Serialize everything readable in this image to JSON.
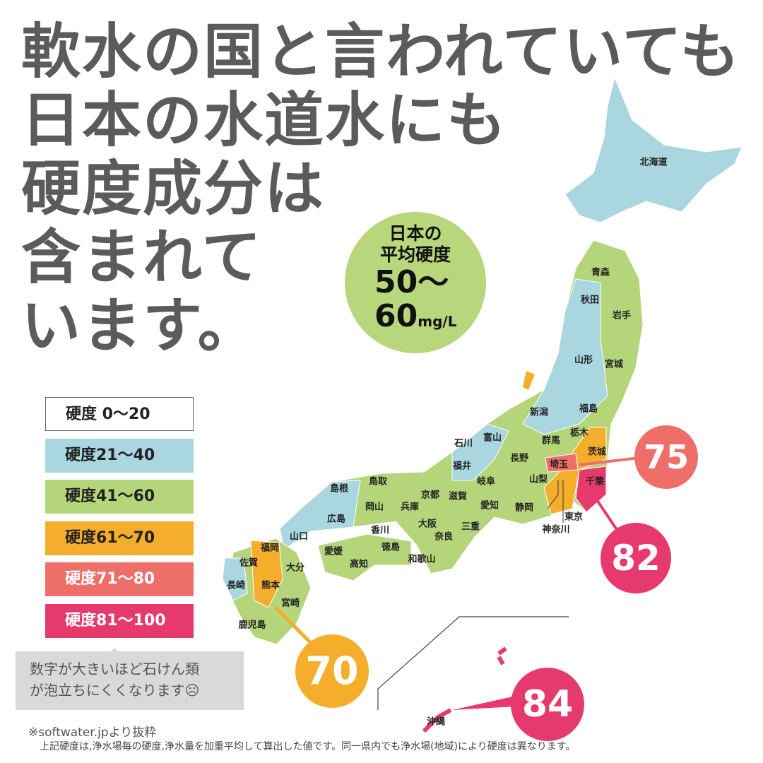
{
  "title_lines": [
    "軟水の国と言われていても",
    "日本の水道水にも",
    "硬度成分は",
    "含まれて",
    "います。"
  ],
  "average": {
    "line1": "日本の",
    "line2": "平均硬度",
    "value1": "50〜",
    "value2": "60",
    "unit": "mg/L"
  },
  "legend": [
    {
      "label": "硬度  0〜20",
      "color": "#ffffff",
      "text_color": "#222"
    },
    {
      "label": "硬度21〜40",
      "color": "#a9d6df",
      "text_color": "#222"
    },
    {
      "label": "硬度41〜60",
      "color": "#b5d57a",
      "text_color": "#222"
    },
    {
      "label": "硬度61〜70",
      "color": "#f4ae2c",
      "text_color": "#222"
    },
    {
      "label": "硬度71〜80",
      "color": "#ee6f6a",
      "text_color": "#fff"
    },
    {
      "label": "硬度81〜100",
      "color": "#e63a6e",
      "text_color": "#fff"
    }
  ],
  "note": {
    "line1": "数字が大きいほど石けん類",
    "line2": "が泡立ちにくくなります☹"
  },
  "callouts": [
    {
      "value": "75",
      "color": "#ee6f6a",
      "prefecture": "埼玉"
    },
    {
      "value": "82",
      "color": "#e63a6e",
      "prefecture": "千葉"
    },
    {
      "value": "70",
      "color": "#f4ae2c",
      "prefecture": "熊本"
    },
    {
      "value": "84",
      "color": "#e63a6e",
      "prefecture": "沖縄"
    }
  ],
  "prefectures": [
    "北海道",
    "青森",
    "秋田",
    "岩手",
    "山形",
    "宮城",
    "新潟",
    "福島",
    "石川",
    "富山",
    "群馬",
    "栃木",
    "茨城",
    "長野",
    "埼玉",
    "千葉",
    "福井",
    "山梨",
    "岐阜",
    "鳥取",
    "島根",
    "京都",
    "滋賀",
    "岡山",
    "兵庫",
    "愛知",
    "静岡",
    "東京",
    "神奈川",
    "広島",
    "大阪",
    "三重",
    "香川",
    "奈良",
    "山口",
    "愛媛",
    "徳島",
    "福岡",
    "高知",
    "和歌山",
    "佐賀",
    "大分",
    "長崎",
    "熊本",
    "宮崎",
    "鹿児島",
    "沖縄"
  ],
  "source": "※softwater.jpより抜粋",
  "footnote": "上記硬度は,浄水場毎の硬度,浄水量を加重平均して算出した値です。同一県内でも浄水場(地域)により硬度は異なります。"
}
